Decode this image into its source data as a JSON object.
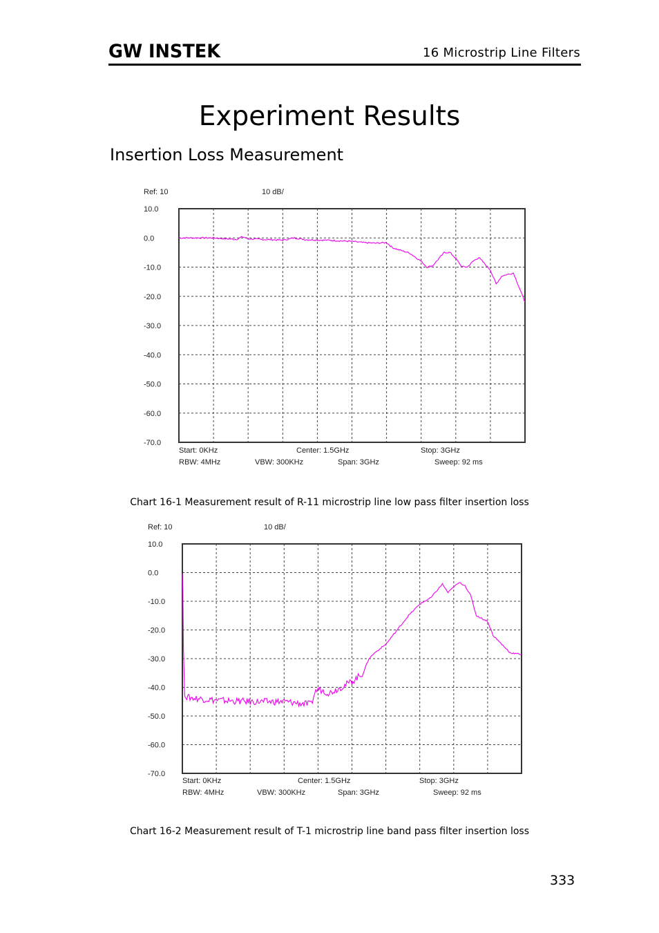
{
  "header": {
    "logo_text": "GW INSTEK",
    "chapter": "16 Microstrip Line Filters"
  },
  "title": "Experiment Results",
  "section": "Insertion Loss Measurement",
  "page_number": "333",
  "colors": {
    "trace": "#ee00ee",
    "grid": "#444444",
    "frame": "#333333"
  },
  "captions": [
    "Chart 16-1 Measurement result of R-11 microstrip line low pass filter insertion loss",
    "Chart 16-2 Measurement result of T-1 microstrip line band pass filter insertion loss"
  ],
  "chart_data": [
    {
      "type": "line",
      "ref_label": "Ref: 10",
      "scale_label": "10 dB/",
      "y_tick_labels": [
        "10.0",
        "0.0",
        "-10.0",
        "-20.0",
        "-30.0",
        "-40.0",
        "-50.0",
        "-60.0",
        "-70.0"
      ],
      "ylim": [
        -70,
        10
      ],
      "xlim": [
        0,
        3
      ],
      "footer": {
        "start": "Start: 0KHz",
        "center": "Center: 1.5GHz",
        "stop": "Stop: 3GHz",
        "rbw": "RBW: 4MHz",
        "vbw": "VBW: 300KHz",
        "span": "Span: 3GHz",
        "sweep": "Sweep: 92  ms"
      },
      "series": [
        {
          "name": "insertion loss",
          "x": [
            0,
            0.1,
            0.2,
            0.3,
            0.4,
            0.5,
            0.55,
            0.6,
            0.7,
            0.8,
            0.9,
            1.0,
            1.1,
            1.2,
            1.3,
            1.4,
            1.5,
            1.6,
            1.7,
            1.8,
            1.85,
            1.9,
            2.0,
            2.1,
            2.15,
            2.2,
            2.3,
            2.35,
            2.4,
            2.45,
            2.5,
            2.55,
            2.6,
            2.7,
            2.75,
            2.8,
            2.9,
            3.0
          ],
          "y": [
            0,
            0,
            0,
            0,
            -0.3,
            -0.5,
            0.4,
            -0.3,
            -0.5,
            -0.6,
            -0.8,
            0,
            -0.6,
            -0.7,
            -0.8,
            -1,
            -1.2,
            -1.6,
            -1.8,
            -1.6,
            -3.3,
            -4,
            -5.2,
            -8,
            -10,
            -9.5,
            -5,
            -5,
            -7,
            -9.8,
            -10,
            -8,
            -6.7,
            -11,
            -15.8,
            -13,
            -12,
            -22
          ]
        }
      ]
    },
    {
      "type": "line",
      "ref_label": "Ref: 10",
      "scale_label": "10 dB/",
      "y_tick_labels": [
        "10.0",
        "0.0",
        "-10.0",
        "-20.0",
        "-30.0",
        "-40.0",
        "-50.0",
        "-60.0",
        "-70.0"
      ],
      "ylim": [
        -70,
        10
      ],
      "xlim": [
        0,
        3
      ],
      "footer": {
        "start": "Start: 0KHz",
        "center": "Center: 1.5GHz",
        "stop": "Stop: 3GHz",
        "rbw": "RBW: 4MHz",
        "vbw": "VBW: 300KHz",
        "span": "Span: 3GHz",
        "sweep": "Sweep: 92  ms"
      },
      "series": [
        {
          "name": "insertion loss",
          "x": [
            0,
            0.005,
            0.01,
            0.02,
            0.03,
            0.3,
            0.6,
            0.9,
            1.14,
            1.17,
            1.2,
            1.3,
            1.4,
            1.5,
            1.6,
            1.65,
            1.7,
            1.8,
            1.9,
            2.0,
            2.1,
            2.2,
            2.3,
            2.35,
            2.4,
            2.45,
            2.5,
            2.55,
            2.6,
            2.7,
            2.75,
            2.8,
            2.9,
            3.0
          ],
          "y": [
            0,
            -7,
            -27,
            -43,
            -43.5,
            -44.5,
            -45,
            -45,
            -46,
            -42,
            -40.5,
            -42,
            -40,
            -38,
            -35,
            -30,
            -28,
            -25,
            -20,
            -15,
            -11,
            -8.7,
            -4,
            -7,
            -5,
            -3.5,
            -4.5,
            -8,
            -15,
            -17,
            -22,
            -24,
            -28,
            -28.5
          ]
        }
      ]
    }
  ]
}
